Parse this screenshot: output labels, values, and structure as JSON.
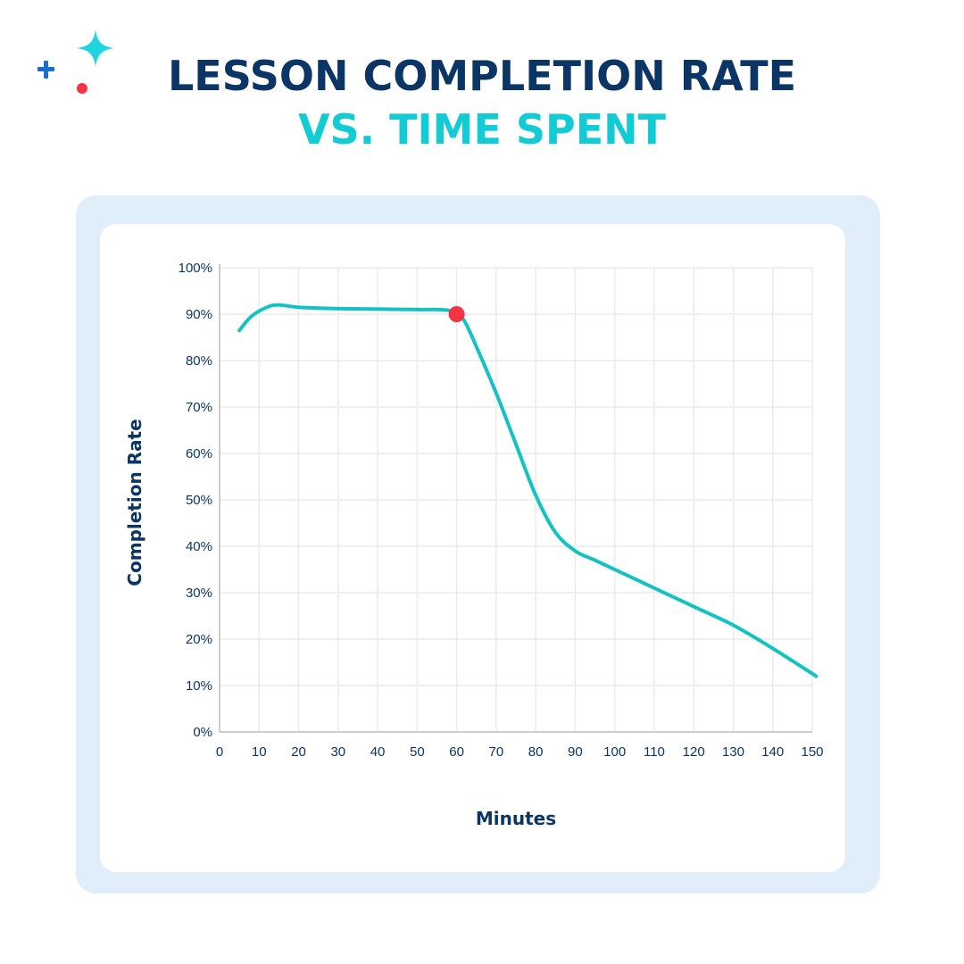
{
  "header": {
    "title_line1": "LESSON COMPLETION RATE",
    "title_line2": "VS. TIME SPENT"
  },
  "colors": {
    "navy": "#0b3565",
    "teal": "#13c2c3",
    "highlight": "#f43345",
    "panel": "#e0eefa",
    "grid": "#ebebeb",
    "decor_plus": "#1a6fd6",
    "decor_sparkle": "#1fd5e0",
    "decor_dot": "#f43345"
  },
  "chart_data": {
    "type": "line",
    "xlabel": "Minutes",
    "ylabel": "Completion Rate",
    "xlim": [
      0,
      150
    ],
    "ylim": [
      0,
      100
    ],
    "x_ticks": [
      0,
      10,
      20,
      30,
      40,
      50,
      60,
      70,
      80,
      90,
      100,
      110,
      120,
      130,
      140,
      150
    ],
    "y_ticks": [
      "0%",
      "10%",
      "20%",
      "30%",
      "40%",
      "50%",
      "60%",
      "70%",
      "80%",
      "90%",
      "100%"
    ],
    "y_tick_values": [
      0,
      10,
      20,
      30,
      40,
      50,
      60,
      70,
      80,
      90,
      100
    ],
    "grid": true,
    "series": [
      {
        "x": [
          5,
          8,
          12,
          15,
          20,
          30,
          40,
          50,
          55,
          58,
          60,
          62,
          65,
          70,
          75,
          80,
          85,
          90,
          95,
          100,
          110,
          120,
          130,
          140,
          151
        ],
        "y": [
          86.5,
          89.5,
          91.5,
          92,
          91.5,
          91.2,
          91.1,
          91,
          91,
          90.8,
          90,
          88.5,
          83,
          73,
          62,
          51,
          43,
          39,
          37,
          35,
          31,
          27,
          23,
          18,
          12
        ]
      }
    ],
    "highlight_point": {
      "x": 60,
      "y": 90
    }
  }
}
